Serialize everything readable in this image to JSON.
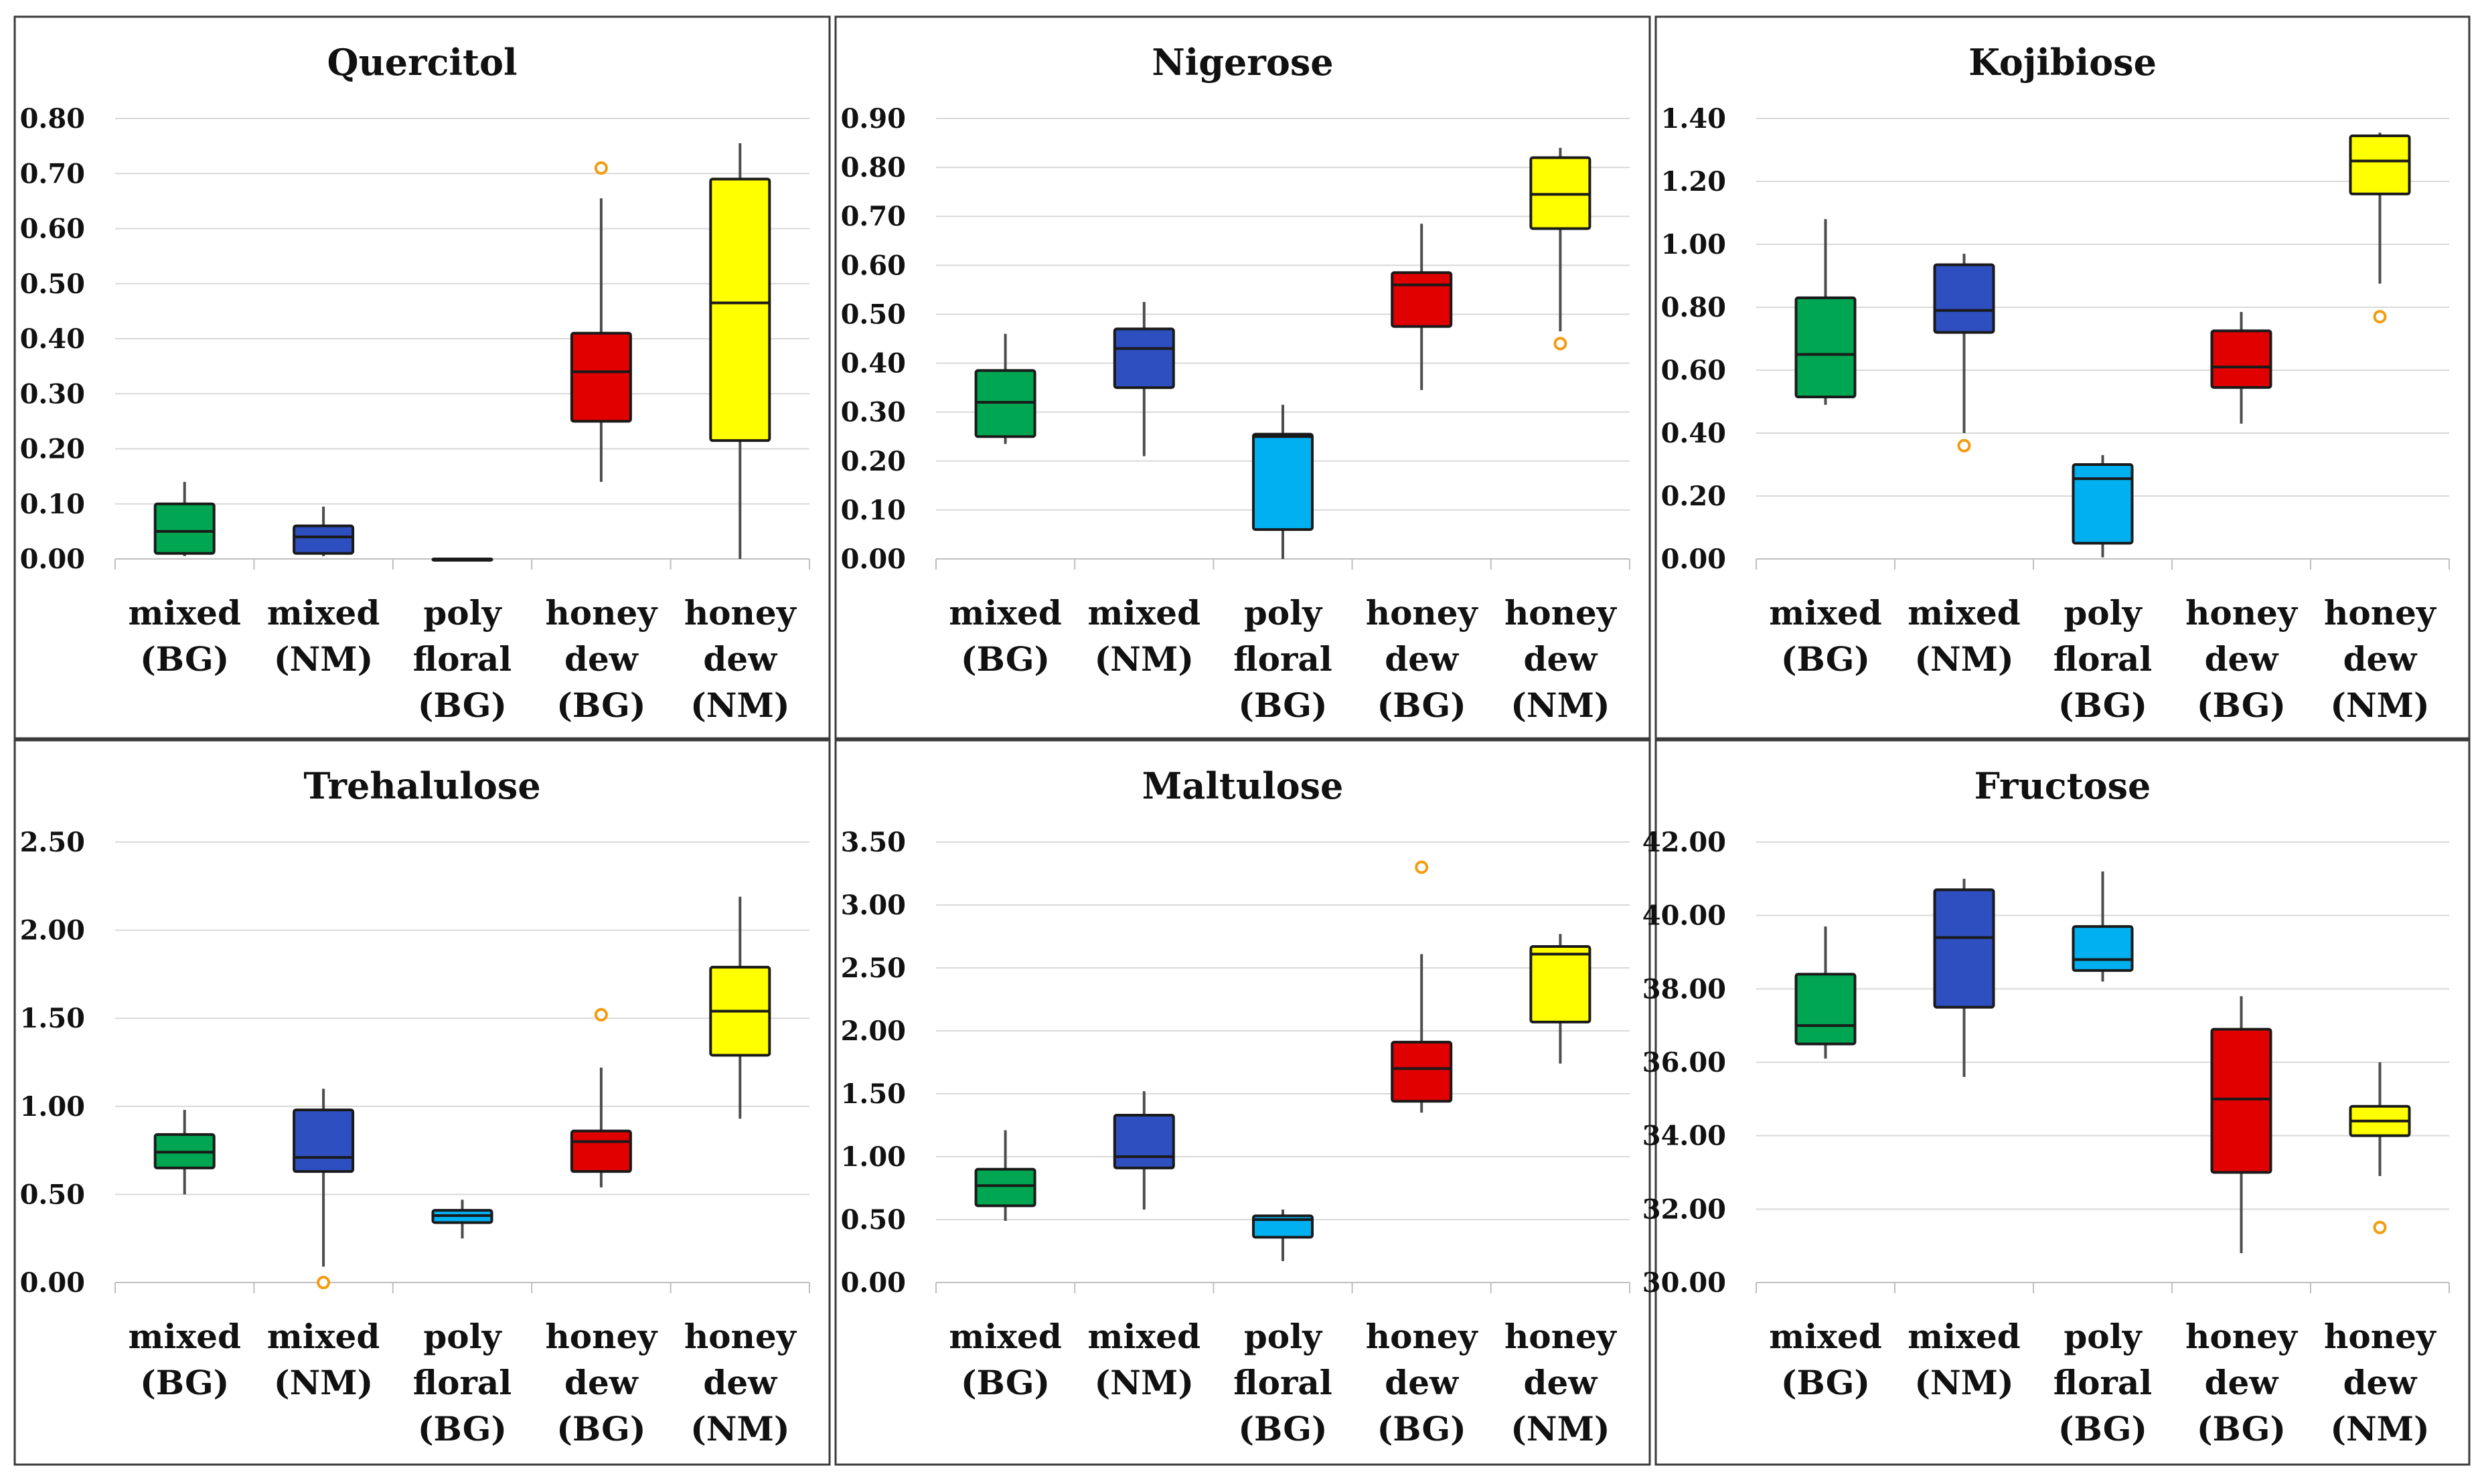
{
  "chart_data": [
    {
      "type": "boxplot",
      "title": "Quercitol",
      "ylim": [
        0,
        0.8
      ],
      "ytick_step": 0.1,
      "ytick_decimals": 2,
      "categories": [
        [
          "mixed",
          "(BG)"
        ],
        [
          "mixed",
          "(NM)"
        ],
        [
          "poly",
          "floral",
          "(BG)"
        ],
        [
          "honey",
          "dew",
          "(BG)"
        ],
        [
          "honey",
          "dew",
          "(NM)"
        ]
      ],
      "boxes": [
        {
          "min": 0.005,
          "q1": 0.01,
          "median": 0.05,
          "q3": 0.1,
          "max": 0.14,
          "outliers": [],
          "color": "#00a651"
        },
        {
          "min": 0.005,
          "q1": 0.01,
          "median": 0.04,
          "q3": 0.06,
          "max": 0.095,
          "outliers": [],
          "color": "#2e4fbf"
        },
        {
          "min": 0.0,
          "q1": 0.0,
          "median": 0.0,
          "q3": 0.0,
          "max": 0.0,
          "outliers": [],
          "color": "#00b0f0"
        },
        {
          "min": 0.14,
          "q1": 0.25,
          "median": 0.34,
          "q3": 0.41,
          "max": 0.655,
          "outliers": [
            0.71
          ],
          "color": "#e00000"
        },
        {
          "min": 0.0,
          "q1": 0.215,
          "median": 0.465,
          "q3": 0.69,
          "max": 0.755,
          "outliers": [],
          "color": "#ffff00"
        }
      ]
    },
    {
      "type": "boxplot",
      "title": "Nigerose",
      "ylim": [
        0,
        0.9
      ],
      "ytick_step": 0.1,
      "ytick_decimals": 2,
      "categories": [
        [
          "mixed",
          "(BG)"
        ],
        [
          "mixed",
          "(NM)"
        ],
        [
          "poly",
          "floral",
          "(BG)"
        ],
        [
          "honey",
          "dew",
          "(BG)"
        ],
        [
          "honey",
          "dew",
          "(NM)"
        ]
      ],
      "boxes": [
        {
          "min": 0.235,
          "q1": 0.25,
          "median": 0.32,
          "q3": 0.385,
          "max": 0.46,
          "outliers": [],
          "color": "#00a651"
        },
        {
          "min": 0.21,
          "q1": 0.35,
          "median": 0.43,
          "q3": 0.47,
          "max": 0.525,
          "outliers": [],
          "color": "#2e4fbf"
        },
        {
          "min": 0.0,
          "q1": 0.06,
          "median": 0.25,
          "q3": 0.255,
          "max": 0.315,
          "outliers": [],
          "color": "#00b0f0"
        },
        {
          "min": 0.345,
          "q1": 0.475,
          "median": 0.56,
          "q3": 0.585,
          "max": 0.685,
          "outliers": [],
          "color": "#e00000"
        },
        {
          "min": 0.465,
          "q1": 0.675,
          "median": 0.745,
          "q3": 0.82,
          "max": 0.84,
          "outliers": [
            0.44
          ],
          "color": "#ffff00"
        }
      ]
    },
    {
      "type": "boxplot",
      "title": "Kojibiose",
      "ylim": [
        0,
        1.4
      ],
      "ytick_step": 0.2,
      "ytick_decimals": 2,
      "categories": [
        [
          "mixed",
          "(BG)"
        ],
        [
          "mixed",
          "(NM)"
        ],
        [
          "poly",
          "floral",
          "(BG)"
        ],
        [
          "honey",
          "dew",
          "(BG)"
        ],
        [
          "honey",
          "dew",
          "(NM)"
        ]
      ],
      "boxes": [
        {
          "min": 0.49,
          "q1": 0.515,
          "median": 0.65,
          "q3": 0.83,
          "max": 1.08,
          "outliers": [],
          "color": "#00a651"
        },
        {
          "min": 0.4,
          "q1": 0.72,
          "median": 0.79,
          "q3": 0.935,
          "max": 0.97,
          "outliers": [
            0.36
          ],
          "color": "#2e4fbf"
        },
        {
          "min": 0.005,
          "q1": 0.05,
          "median": 0.255,
          "q3": 0.3,
          "max": 0.33,
          "outliers": [],
          "color": "#00b0f0"
        },
        {
          "min": 0.43,
          "q1": 0.545,
          "median": 0.61,
          "q3": 0.725,
          "max": 0.785,
          "outliers": [],
          "color": "#e00000"
        },
        {
          "min": 0.875,
          "q1": 1.16,
          "median": 1.265,
          "q3": 1.345,
          "max": 1.355,
          "outliers": [
            0.77
          ],
          "color": "#ffff00"
        }
      ]
    },
    {
      "type": "boxplot",
      "title": "Trehalulose",
      "ylim": [
        0,
        2.5
      ],
      "ytick_step": 0.5,
      "ytick_decimals": 2,
      "categories": [
        [
          "mixed",
          "(BG)"
        ],
        [
          "mixed",
          "(NM)"
        ],
        [
          "poly",
          "floral",
          "(BG)"
        ],
        [
          "honey",
          "dew",
          "(BG)"
        ],
        [
          "honey",
          "dew",
          "(NM)"
        ]
      ],
      "boxes": [
        {
          "min": 0.5,
          "q1": 0.65,
          "median": 0.74,
          "q3": 0.84,
          "max": 0.98,
          "outliers": [],
          "color": "#00a651"
        },
        {
          "min": 0.09,
          "q1": 0.63,
          "median": 0.71,
          "q3": 0.98,
          "max": 1.1,
          "outliers": [
            0.0
          ],
          "color": "#2e4fbf"
        },
        {
          "min": 0.25,
          "q1": 0.34,
          "median": 0.38,
          "q3": 0.41,
          "max": 0.47,
          "outliers": [],
          "color": "#00b0f0"
        },
        {
          "min": 0.54,
          "q1": 0.63,
          "median": 0.8,
          "q3": 0.86,
          "max": 1.22,
          "outliers": [
            1.52
          ],
          "color": "#e00000"
        },
        {
          "min": 0.93,
          "q1": 1.29,
          "median": 1.54,
          "q3": 1.79,
          "max": 2.19,
          "outliers": [],
          "color": "#ffff00"
        }
      ]
    },
    {
      "type": "boxplot",
      "title": "Maltulose",
      "ylim": [
        0,
        3.5
      ],
      "ytick_step": 0.5,
      "ytick_decimals": 2,
      "categories": [
        [
          "mixed",
          "(BG)"
        ],
        [
          "mixed",
          "(NM)"
        ],
        [
          "poly",
          "floral",
          "(BG)"
        ],
        [
          "honey",
          "dew",
          "(BG)"
        ],
        [
          "honey",
          "dew",
          "(NM)"
        ]
      ],
      "boxes": [
        {
          "min": 0.49,
          "q1": 0.61,
          "median": 0.77,
          "q3": 0.9,
          "max": 1.21,
          "outliers": [],
          "color": "#00a651"
        },
        {
          "min": 0.58,
          "q1": 0.91,
          "median": 1.0,
          "q3": 1.33,
          "max": 1.52,
          "outliers": [],
          "color": "#2e4fbf"
        },
        {
          "min": 0.17,
          "q1": 0.36,
          "median": 0.5,
          "q3": 0.53,
          "max": 0.58,
          "outliers": [],
          "color": "#00b0f0"
        },
        {
          "min": 1.35,
          "q1": 1.44,
          "median": 1.7,
          "q3": 1.91,
          "max": 2.61,
          "outliers": [
            3.3
          ],
          "color": "#e00000"
        },
        {
          "min": 1.74,
          "q1": 2.07,
          "median": 2.61,
          "q3": 2.67,
          "max": 2.77,
          "outliers": [],
          "color": "#ffff00"
        }
      ]
    },
    {
      "type": "boxplot",
      "title": "Fructose",
      "ylim": [
        30,
        42
      ],
      "ytick_step": 2,
      "ytick_decimals": 2,
      "categories": [
        [
          "mixed",
          "(BG)"
        ],
        [
          "mixed",
          "(NM)"
        ],
        [
          "poly",
          "floral",
          "(BG)"
        ],
        [
          "honey",
          "dew",
          "(BG)"
        ],
        [
          "honey",
          "dew",
          "(NM)"
        ]
      ],
      "boxes": [
        {
          "min": 36.1,
          "q1": 36.5,
          "median": 37.0,
          "q3": 38.4,
          "max": 39.7,
          "outliers": [],
          "color": "#00a651"
        },
        {
          "min": 35.6,
          "q1": 37.5,
          "median": 39.4,
          "q3": 40.7,
          "max": 41.0,
          "outliers": [],
          "color": "#2e4fbf"
        },
        {
          "min": 38.2,
          "q1": 38.5,
          "median": 38.8,
          "q3": 39.7,
          "max": 41.2,
          "outliers": [],
          "color": "#00b0f0"
        },
        {
          "min": 30.8,
          "q1": 33.0,
          "median": 35.0,
          "q3": 36.9,
          "max": 37.8,
          "outliers": [],
          "color": "#e00000"
        },
        {
          "min": 32.9,
          "q1": 34.0,
          "median": 34.4,
          "q3": 34.8,
          "max": 36.0,
          "outliers": [
            31.5
          ],
          "color": "#ffff00"
        }
      ]
    }
  ],
  "colors": {
    "outlier": "#f39c12",
    "frame": "#3a3a3a",
    "grid": "#d9d9d9"
  }
}
